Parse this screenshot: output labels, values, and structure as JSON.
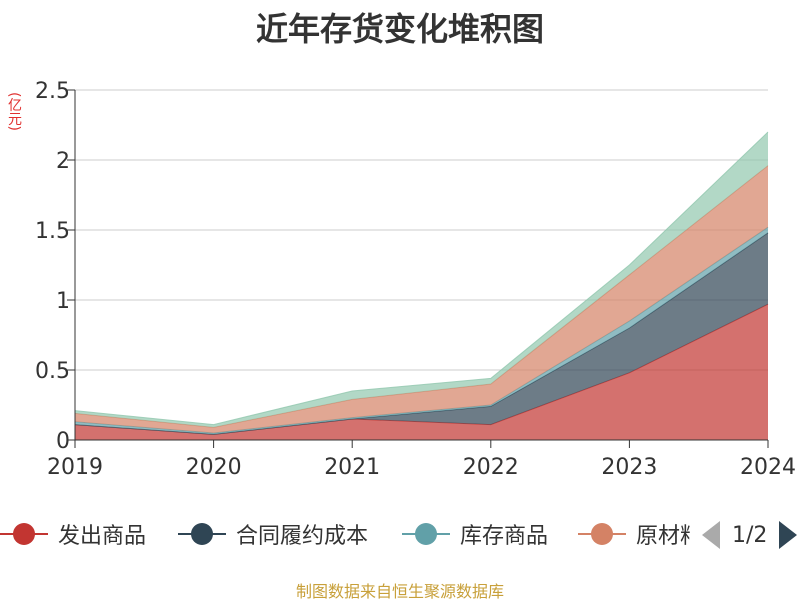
{
  "title": "近年存货变化堆积图",
  "unit_label": "(亿元)",
  "source": "制图数据来自恒生聚源数据库",
  "pager": {
    "text": "1/2"
  },
  "chart_data": {
    "type": "area",
    "stacked": true,
    "title": "近年存货变化堆积图",
    "ylabel": "(亿元)",
    "ylim": [
      0,
      2.5
    ],
    "yticks": [
      "0",
      "0.5",
      "1",
      "1.5",
      "2",
      "2.5"
    ],
    "grid": true,
    "legend_position": "bottom",
    "categories": [
      "2019",
      "2020",
      "2021",
      "2022",
      "2023",
      "2024"
    ],
    "series": [
      {
        "name": "发出商品",
        "color": "#c23531",
        "values": [
          0.11,
          0.04,
          0.15,
          0.11,
          0.48,
          0.97
        ]
      },
      {
        "name": "合同履约成本",
        "color": "#2f4554",
        "values": [
          0.0,
          0.0,
          0.0,
          0.13,
          0.32,
          0.51
        ]
      },
      {
        "name": "库存商品",
        "color": "#61a0a8",
        "values": [
          0.02,
          0.01,
          0.01,
          0.01,
          0.05,
          0.04
        ]
      },
      {
        "name": "原材料",
        "color": "#d48265",
        "values": [
          0.06,
          0.04,
          0.13,
          0.15,
          0.33,
          0.44
        ]
      },
      {
        "name": "",
        "color": "#91c7ae",
        "values": [
          0.02,
          0.02,
          0.06,
          0.04,
          0.07,
          0.24
        ]
      }
    ]
  }
}
